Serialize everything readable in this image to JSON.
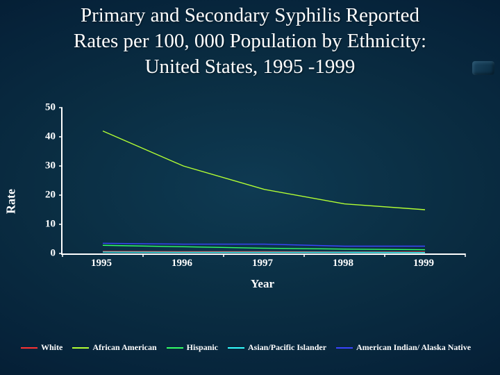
{
  "title_line1": "Primary and Secondary Syphilis Reported",
  "title_line2": "Rates per 100, 000 Population by Ethnicity:",
  "title_line3": "United States, 1995 -1999",
  "chart": {
    "type": "line",
    "background_color": "transparent",
    "axis_color": "#ffffff",
    "text_color": "#ffffff",
    "ylabel": "Rate",
    "xlabel": "Year",
    "label_fontsize": 17,
    "tick_fontsize": 15,
    "tick_fontweight": "bold",
    "ylim": [
      0,
      50
    ],
    "yticks": [
      0,
      10,
      20,
      30,
      40,
      50
    ],
    "categories": [
      "1995",
      "1996",
      "1997",
      "1998",
      "1999"
    ],
    "tick_mark_color": "#ffffff",
    "line_width": 1.4,
    "series": [
      {
        "name": "White",
        "color": "#ff3333",
        "values": [
          0.7,
          0.6,
          0.6,
          0.5,
          0.5
        ]
      },
      {
        "name": "African American",
        "color": "#b3ff33",
        "values": [
          42.0,
          30.0,
          22.0,
          17.0,
          15.0
        ]
      },
      {
        "name": "Hispanic",
        "color": "#33ff66",
        "values": [
          2.8,
          2.3,
          1.8,
          1.5,
          1.3
        ]
      },
      {
        "name": "Asian/Pacific Islander",
        "color": "#33ffff",
        "values": [
          0.5,
          0.4,
          0.4,
          0.4,
          0.3
        ]
      },
      {
        "name": "American Indian/ Alaska Native",
        "color": "#3a44ff",
        "values": [
          3.5,
          3.2,
          3.2,
          2.5,
          2.5
        ]
      }
    ]
  },
  "legend_fontsize": 12
}
